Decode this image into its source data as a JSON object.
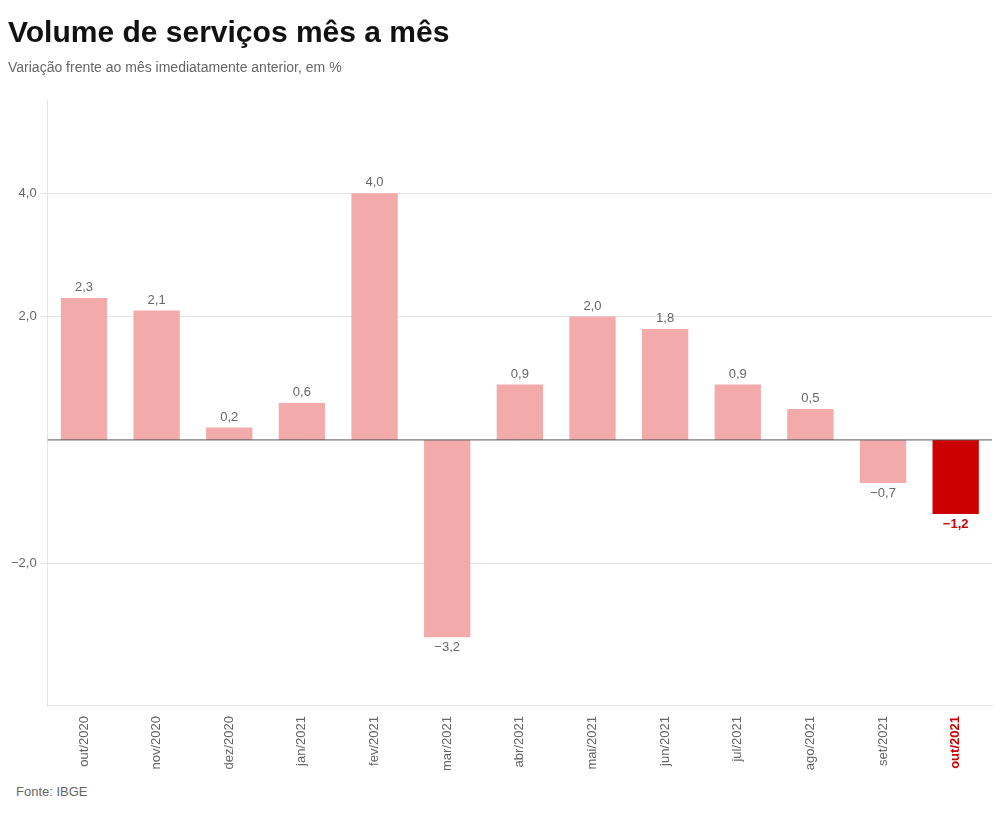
{
  "chart_data": {
    "type": "bar",
    "title": "Volume de serviços mês a mês",
    "subtitle": "Variação frente ao mês imediatamente anterior, em %",
    "annotations": [
      "Fonte: IBGE"
    ],
    "categories": [
      "out/2020",
      "nov/2020",
      "dez/2020",
      "jan/2021",
      "fev/2021",
      "mar/2021",
      "abr/2021",
      "mai/2021",
      "jun/2021",
      "jul/2021",
      "ago/2021",
      "set/2021",
      "out/2021"
    ],
    "values": [
      2.3,
      2.1,
      0.2,
      0.6,
      4.0,
      -3.2,
      0.9,
      2.0,
      1.8,
      0.9,
      0.5,
      -0.7,
      -1.2
    ],
    "value_labels": [
      "2,3",
      "2,1",
      "0,2",
      "0,6",
      "4,0",
      "−3,2",
      "0,9",
      "2,0",
      "1,8",
      "0,9",
      "0,5",
      "−0,7",
      "−1,2"
    ],
    "colors": [
      "#f2aaaa",
      "#f2aaaa",
      "#f2aaaa",
      "#f2aaaa",
      "#f2aaaa",
      "#f2aaaa",
      "#f2aaaa",
      "#f2aaaa",
      "#f2aaaa",
      "#f2aaaa",
      "#f2aaaa",
      "#f2aaaa",
      "#cc0000"
    ],
    "ylim": [
      -4.3,
      5.5
    ],
    "yticks": [
      {
        "value": -2.0,
        "label": "−2,0"
      },
      {
        "value": 2.0,
        "label": "2,0"
      },
      {
        "value": 4.0,
        "label": "4,0"
      }
    ],
    "grid": true,
    "data_labels": true
  }
}
